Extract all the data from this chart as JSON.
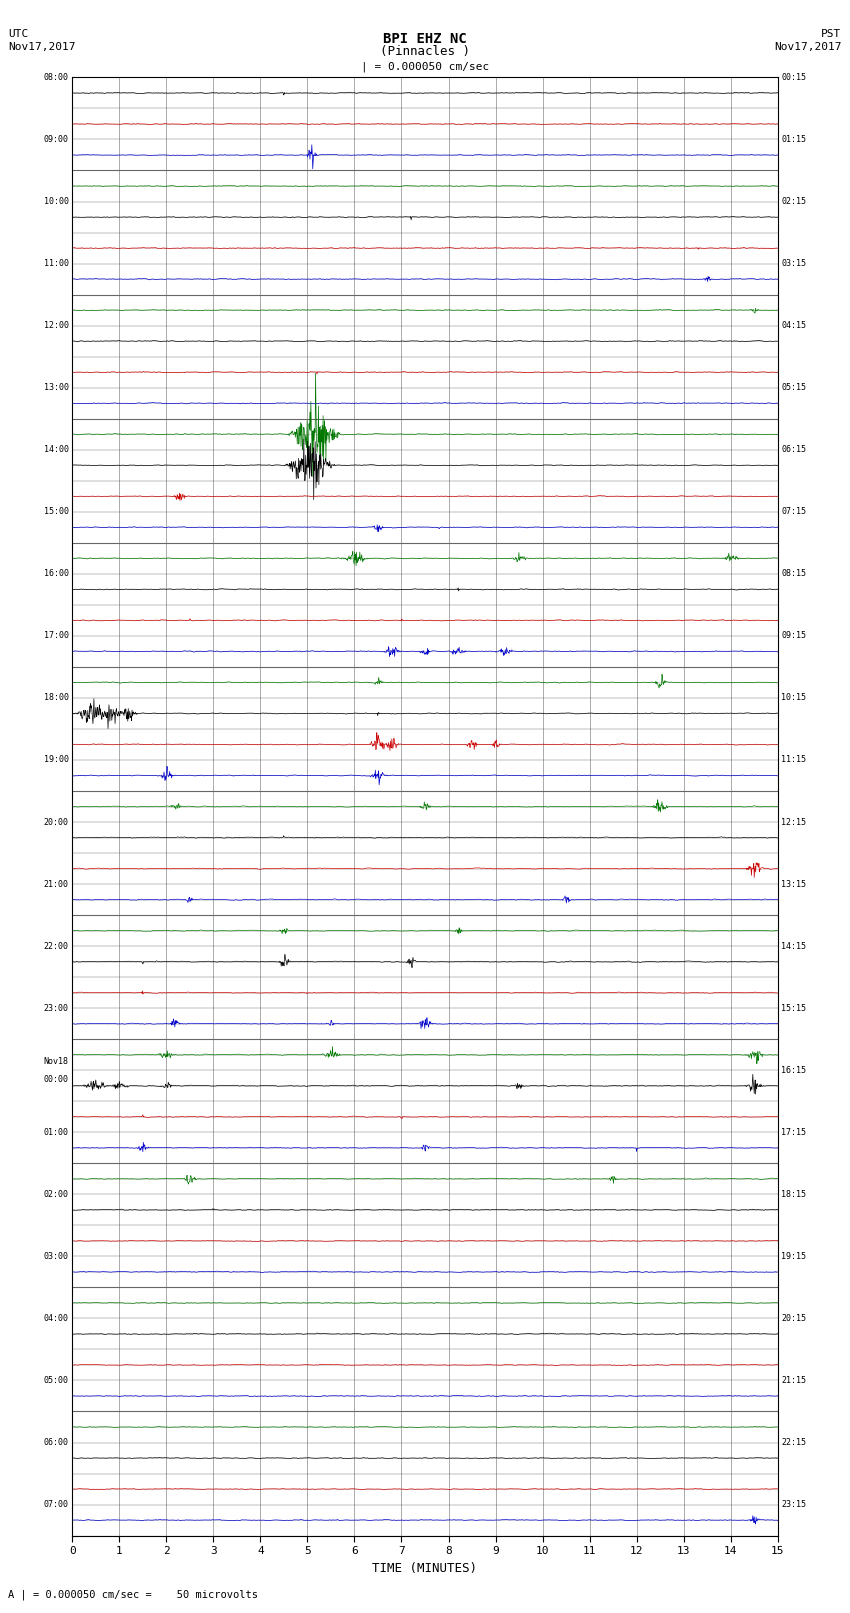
{
  "title_line1": "BPI EHZ NC",
  "title_line2": "(Pinnacles )",
  "scale_label": "| = 0.000050 cm/sec",
  "utc_label1": "UTC",
  "utc_label2": "Nov17,2017",
  "pst_label1": "PST",
  "pst_label2": "Nov17,2017",
  "bottom_label": "A | = 0.000050 cm/sec =    50 microvolts",
  "xlabel": "TIME (MINUTES)",
  "xlim": [
    0,
    15
  ],
  "xticks": [
    0,
    1,
    2,
    3,
    4,
    5,
    6,
    7,
    8,
    9,
    10,
    11,
    12,
    13,
    14,
    15
  ],
  "left_times": [
    "08:00",
    "",
    "09:00",
    "",
    "10:00",
    "",
    "11:00",
    "",
    "12:00",
    "",
    "13:00",
    "",
    "14:00",
    "",
    "15:00",
    "",
    "16:00",
    "",
    "17:00",
    "",
    "18:00",
    "",
    "19:00",
    "",
    "20:00",
    "",
    "21:00",
    "",
    "22:00",
    "",
    "23:00",
    "",
    "Nov18\n00:00",
    "",
    "01:00",
    "",
    "02:00",
    "",
    "03:00",
    "",
    "04:00",
    "",
    "05:00",
    "",
    "06:00",
    "",
    "07:00"
  ],
  "right_times": [
    "00:15",
    "",
    "01:15",
    "",
    "02:15",
    "",
    "03:15",
    "",
    "04:15",
    "",
    "05:15",
    "",
    "06:15",
    "",
    "07:15",
    "",
    "08:15",
    "",
    "09:15",
    "",
    "10:15",
    "",
    "11:15",
    "",
    "12:15",
    "",
    "13:15",
    "",
    "14:15",
    "",
    "15:15",
    "",
    "16:15",
    "",
    "17:15",
    "",
    "18:15",
    "",
    "19:15",
    "",
    "20:15",
    "",
    "21:15",
    "",
    "22:15",
    "",
    "23:15"
  ],
  "n_traces": 47,
  "background_color": "#ffffff",
  "grid_color_v": "#888888",
  "grid_color_h": "#888888",
  "trace_colors_cycle": [
    "#000000",
    "#cc0000",
    "#0000cc",
    "#007700"
  ],
  "plot_area_bg": "#ffffff",
  "noise_base": 0.018,
  "trace_scale": 0.38
}
